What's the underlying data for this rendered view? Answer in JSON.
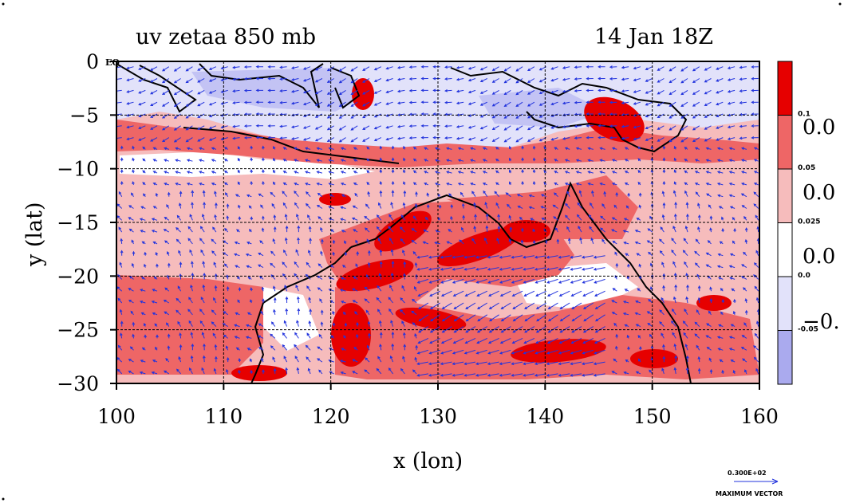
{
  "header": {
    "title": "uv zetaa 850 mb",
    "date": "14 Jan 18Z"
  },
  "map": {
    "x_ticks": [
      "100",
      "110",
      "120",
      "130",
      "140",
      "150",
      "160"
    ],
    "y_ticks": [
      "0",
      "−5",
      "−10",
      "−15",
      "−20",
      "−25",
      "−30"
    ],
    "eq_label": "EQ",
    "xlabel": "x (lon)",
    "ylabel": "y (lat)",
    "lon_range": [
      100,
      160
    ],
    "lat_range": [
      -30,
      0
    ],
    "grid": true,
    "field": "zetaa",
    "level": "850 mb",
    "vectors": "uv"
  },
  "colorbar": {
    "bins": [
      {
        "color": "#e60000",
        "label": "0.1"
      },
      {
        "color": "#ee6666",
        "label": "0.05"
      },
      {
        "color": "#f6bcbc",
        "label": "0.025"
      },
      {
        "color": "#ffffff",
        "label": "0.0"
      },
      {
        "color": "#e2e2fa",
        "label": "-0.05"
      },
      {
        "color": "#aaaaee",
        "label": ""
      }
    ],
    "side_labels": [
      "0.0",
      "0.0",
      "0.0",
      "−0."
    ]
  },
  "vector_key": {
    "value": "0.300E+02",
    "label": "MAXIMUM VECTOR"
  },
  "colors": {
    "strong_pos": "#e60000",
    "mid_pos": "#ee6666",
    "weak_pos": "#f6bcbc",
    "zero": "#ffffff",
    "weak_neg": "#e2e2fa",
    "strong_neg": "#aaaaee",
    "vectors": "#2233dd",
    "coast": "#000000"
  }
}
